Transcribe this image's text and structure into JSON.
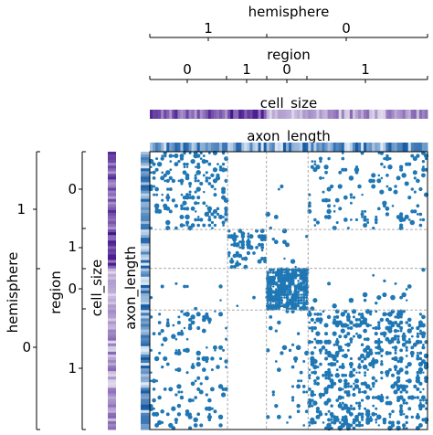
{
  "chart_data": {
    "type": "adjacency-matrix",
    "title": "",
    "top_annotations": [
      {
        "name": "hemisphere",
        "tick_labels": [
          "1",
          "0"
        ]
      },
      {
        "name": "region",
        "tick_labels": [
          "0",
          "1",
          "0",
          "1"
        ]
      },
      {
        "name": "cell_size",
        "colormap": "purples"
      },
      {
        "name": "axon_length",
        "colormap": "blues"
      }
    ],
    "left_annotations": [
      {
        "name": "hemisphere",
        "tick_labels": [
          "1",
          "0"
        ]
      },
      {
        "name": "region",
        "tick_labels": [
          "0",
          "1",
          "0",
          "1"
        ]
      },
      {
        "name": "cell_size",
        "colormap": "purples"
      },
      {
        "name": "axon_length",
        "colormap": "blues"
      }
    ],
    "groups": [
      {
        "hemisphere": "1",
        "region": "0",
        "fraction": 0.275
      },
      {
        "hemisphere": "1",
        "region": "1",
        "fraction": 0.145
      },
      {
        "hemisphere": "0",
        "region": "0",
        "fraction": 0.145
      },
      {
        "hemisphere": "0",
        "region": "1",
        "fraction": 0.435
      }
    ],
    "block_density": [
      [
        0.22,
        0.0,
        0.02,
        0.12
      ],
      [
        0.0,
        0.32,
        0.02,
        0.0
      ],
      [
        0.02,
        0.02,
        0.85,
        0.03
      ],
      [
        0.12,
        0.0,
        0.05,
        0.28
      ]
    ],
    "gridlines": "dashed",
    "marker_color": "#1f77b4"
  }
}
